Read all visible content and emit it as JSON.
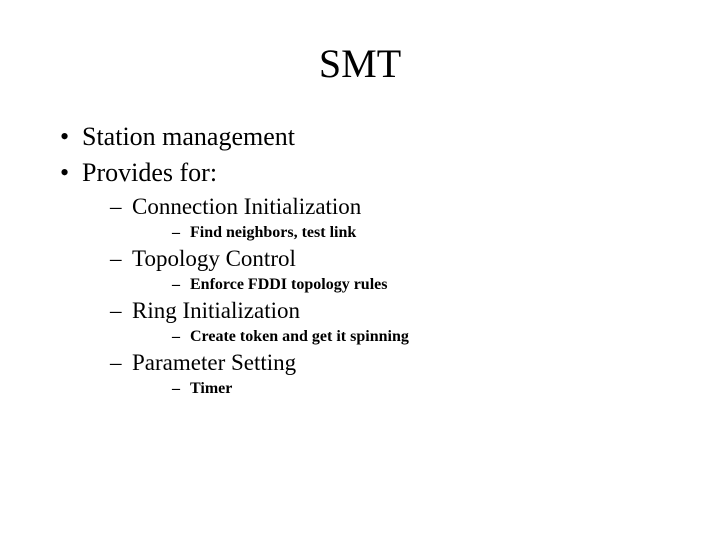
{
  "title": "SMT",
  "colors": {
    "text": "#000000",
    "background": "#ffffff"
  },
  "fonts": {
    "family": "Times New Roman",
    "title_size": 40,
    "l1_size": 26,
    "l2_size": 23,
    "l3_size": 16
  },
  "bullets": {
    "l1": "•",
    "l2": "–",
    "l3": "–"
  },
  "level1": [
    {
      "text": "Station management"
    },
    {
      "text": "Provides for:"
    }
  ],
  "level2": [
    {
      "text": "Connection Initialization",
      "sub": [
        {
          "text": "Find neighbors, test link"
        }
      ]
    },
    {
      "text": "Topology Control",
      "sub": [
        {
          "text": "Enforce FDDI topology rules"
        }
      ]
    },
    {
      "text": "Ring Initialization",
      "sub": [
        {
          "text": "Create token and get it spinning"
        }
      ]
    },
    {
      "text": "Parameter Setting",
      "sub": [
        {
          "text": "Timer"
        }
      ]
    }
  ]
}
